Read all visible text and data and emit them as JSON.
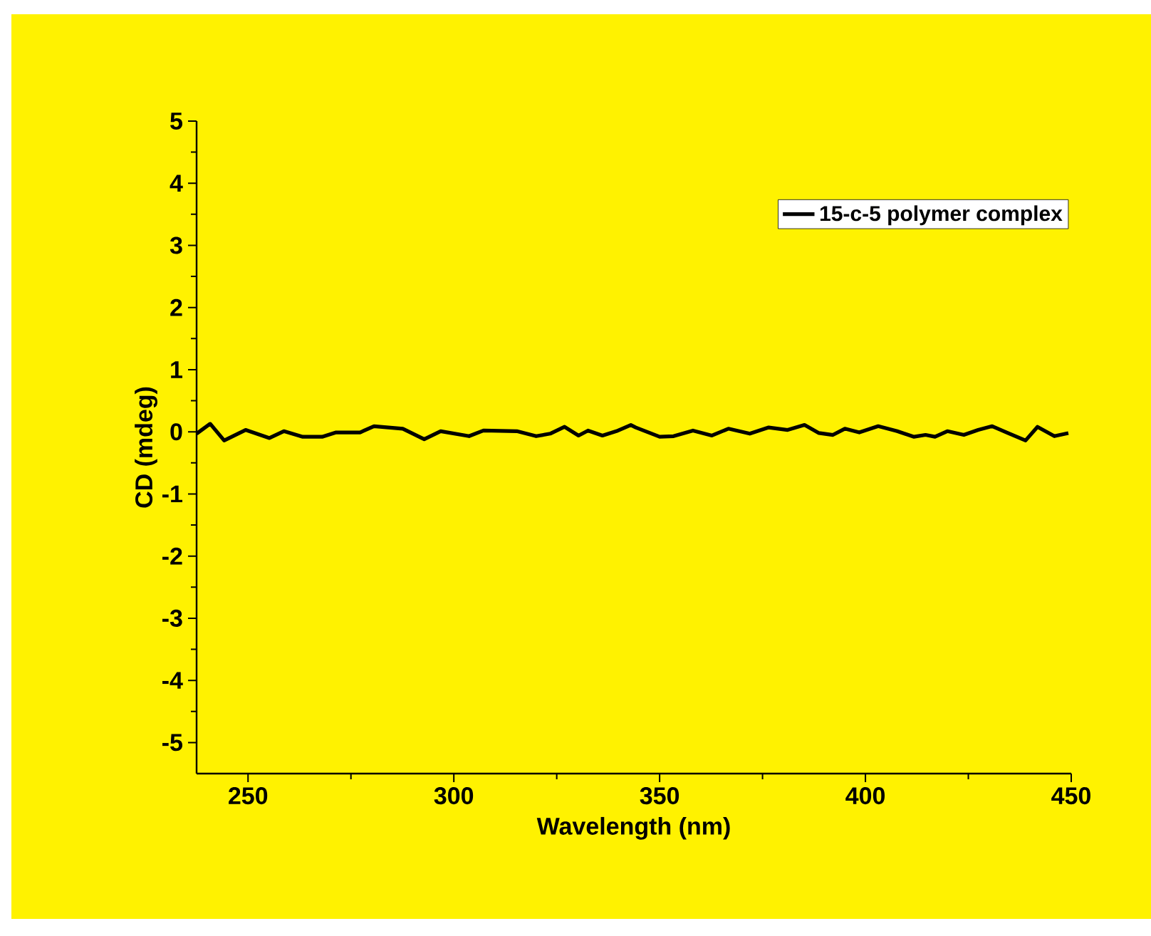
{
  "chart_data": {
    "type": "line",
    "xlabel": "Wavelength (nm)",
    "ylabel": "CD (mdeg)",
    "xlim": [
      237.5,
      450
    ],
    "ylim": [
      -5.5,
      5
    ],
    "xticks": [
      250,
      300,
      350,
      400,
      450
    ],
    "yticks": [
      -5,
      -4,
      -3,
      -2,
      -1,
      0,
      1,
      2,
      3,
      4,
      5
    ],
    "legend": "top right",
    "line_style": "solid",
    "series": [
      {
        "name": "15-c-5 polymer complex",
        "color": "#000000",
        "x": [
          237.5,
          240.8,
          244.2,
          249.4,
          255.2,
          258.7,
          263.3,
          268,
          271.4,
          277.2,
          280.6,
          287.6,
          292.8,
          296.8,
          303.7,
          307.2,
          315.3,
          320,
          323.4,
          326.9,
          330.3,
          332.6,
          336.1,
          339.5,
          343,
          344.2,
          350,
          353.4,
          358.1,
          362.7,
          366.7,
          371.9,
          376.5,
          381.1,
          385.2,
          388.7,
          392.1,
          395,
          398.5,
          403.1,
          407.7,
          411.8,
          414.6,
          416.9,
          419.9,
          423.9,
          427.4,
          430.8,
          434.3,
          438.9,
          441.8,
          445.9,
          449.3
        ],
        "values": [
          -0.03,
          0.13,
          -0.14,
          0.03,
          -0.1,
          0.01,
          -0.08,
          -0.08,
          -0.01,
          -0.01,
          0.09,
          0.05,
          -0.12,
          0.01,
          -0.07,
          0.02,
          0.01,
          -0.07,
          -0.03,
          0.08,
          -0.06,
          0.02,
          -0.06,
          0.01,
          0.11,
          0.07,
          -0.08,
          -0.07,
          0.02,
          -0.06,
          0.05,
          -0.03,
          0.07,
          0.03,
          0.11,
          -0.02,
          -0.05,
          0.05,
          -0.01,
          0.09,
          0.01,
          -0.08,
          -0.05,
          -0.08,
          0.01,
          -0.05,
          0.03,
          0.09,
          -0.01,
          -0.14,
          0.08,
          -0.07,
          -0.02
        ]
      }
    ]
  }
}
